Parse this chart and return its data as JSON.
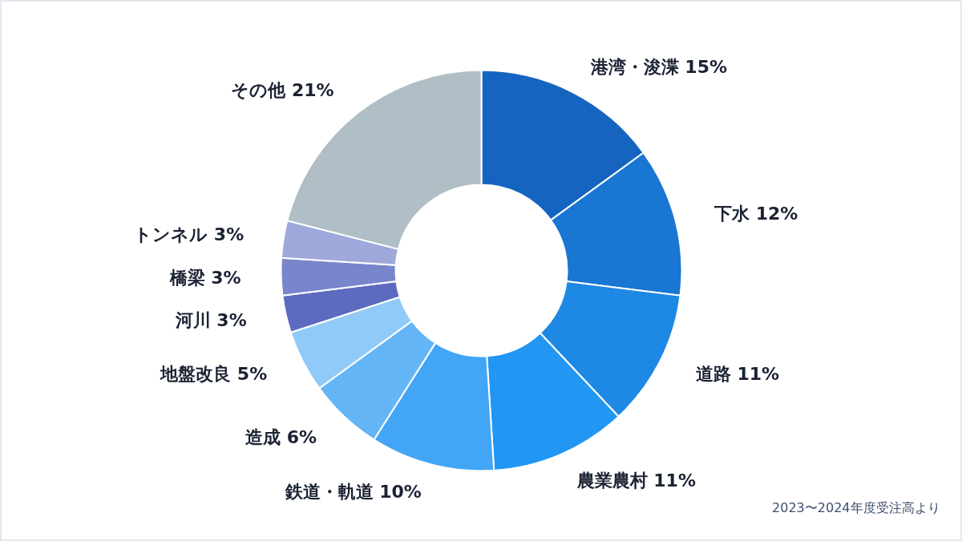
{
  "chart_data": {
    "type": "donut",
    "categories": [
      "港湾・浚渫",
      "下水",
      "道路",
      "農業農村",
      "鉄道・軌道",
      "造成",
      "地盤改良",
      "河川",
      "橋梁",
      "トンネル",
      "その他"
    ],
    "values": [
      15,
      12,
      11,
      11,
      10,
      6,
      5,
      3,
      3,
      3,
      21
    ],
    "value_labels": [
      "15%",
      "12%",
      "11%",
      "11%",
      "10%",
      "6%",
      "5%",
      "3%",
      "3%",
      "3%",
      "21%"
    ],
    "colors": [
      "#1565c0",
      "#1976d2",
      "#1e88e5",
      "#2196f3",
      "#42a5f5",
      "#64b5f6",
      "#90caf9",
      "#5c6bc0",
      "#7986cb",
      "#9fa8da",
      "#b0bec5"
    ],
    "annotations": [
      "2023〜2024年度受注高より"
    ],
    "legend": false
  }
}
